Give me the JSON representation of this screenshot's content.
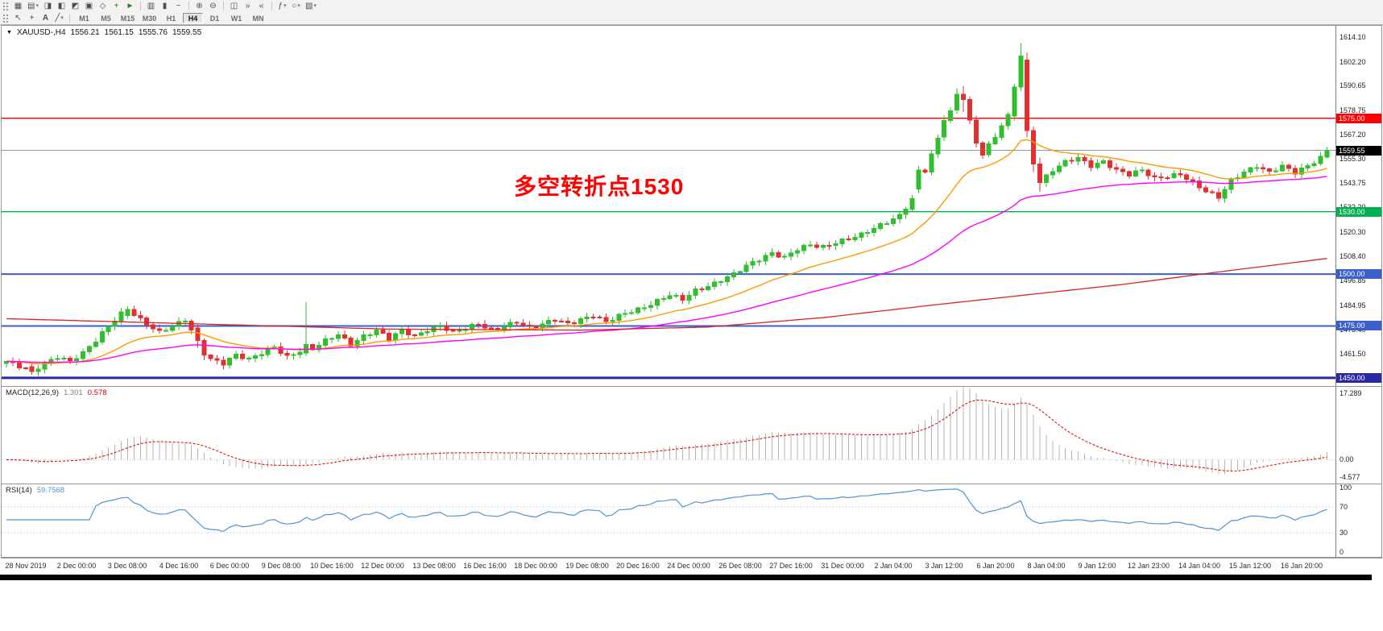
{
  "colors": {
    "up": "#2fbf2f",
    "down": "#e23030",
    "ma_fast": "#ff9900",
    "ma_slow": "#ff00ff",
    "ma_long": "#dd2222",
    "macd_hist": "#b4b4b4",
    "macd_signal": "#d40000",
    "macd_value": "#7f7f7f",
    "macd_signal_value": "#cc0000",
    "rsi_line": "#4f94d4",
    "rsi_level": "#8fbcdf",
    "rsi_value": "#4f94d4",
    "annotation": "#ff0000",
    "level_red": "#ff0000",
    "level_green": "#00b050",
    "level_blue": "#3a5fcd",
    "level_darkblue": "#2929a3",
    "current_price_line": "#8899aa",
    "current_price_tag": "#000000"
  },
  "toolbar": {
    "row1": [
      {
        "type": "grip"
      },
      {
        "name": "new-chart",
        "glyph": "▦"
      },
      {
        "name": "profiles",
        "glyph": "▤",
        "dropdown": true
      },
      {
        "name": "market-watch",
        "glyph": "◨"
      },
      {
        "name": "data-window",
        "glyph": "◧"
      },
      {
        "name": "navigator",
        "glyph": "◩"
      },
      {
        "name": "terminal",
        "glyph": "▣"
      },
      {
        "name": "strategy-tester",
        "glyph": "◇"
      },
      {
        "name": "new-order",
        "glyph": "+",
        "color": "#1a7a1a"
      },
      {
        "name": "autotrading",
        "glyph": "►",
        "color": "#2e7d32"
      },
      {
        "type": "sep"
      },
      {
        "name": "bar-chart",
        "glyph": "▥"
      },
      {
        "name": "candlestick-chart",
        "glyph": "▮"
      },
      {
        "name": "line-chart",
        "glyph": "~"
      },
      {
        "type": "sep"
      },
      {
        "name": "zoom-in",
        "glyph": "⊕"
      },
      {
        "name": "zoom-out",
        "glyph": "⊖"
      },
      {
        "type": "sep"
      },
      {
        "name": "tile-windows",
        "glyph": "◫"
      },
      {
        "name": "auto-scroll",
        "glyph": "»"
      },
      {
        "name": "chart-shift",
        "glyph": "«"
      },
      {
        "type": "sep"
      },
      {
        "name": "indicators",
        "glyph": "ƒ",
        "dropdown": true
      },
      {
        "name": "periods",
        "glyph": "○",
        "dropdown": true
      },
      {
        "name": "templates",
        "glyph": "▧",
        "dropdown": true
      }
    ],
    "row2": [
      {
        "type": "grip"
      },
      {
        "name": "cursor",
        "glyph": "↖"
      },
      {
        "name": "crosshair",
        "glyph": "+"
      },
      {
        "name": "text-label",
        "glyph": "A"
      },
      {
        "name": "draw-tools",
        "glyph": "╱",
        "dropdown": true
      },
      {
        "type": "sep"
      }
    ],
    "timeframes": [
      "M1",
      "M5",
      "M15",
      "M30",
      "H1",
      "H4",
      "D1",
      "W1",
      "MN"
    ],
    "active_timeframe": "H4"
  },
  "chart": {
    "symbol_label": "XAUUSD-,H4",
    "ohlc": {
      "open": "1556.21",
      "high": "1561.15",
      "low": "1555.76",
      "close": "1559.55"
    },
    "annotation_text": "多空转折点1530"
  },
  "chart_data": {
    "type": "candlestick",
    "symbol": "XAUUSD",
    "timeframe": "H4",
    "bar_count": 208,
    "ylim": [
      1446.1,
      1619.5
    ],
    "price_ticks": [
      1614.1,
      1602.2,
      1590.65,
      1578.75,
      1567.2,
      1555.3,
      1543.75,
      1532.2,
      1520.3,
      1508.4,
      1496.85,
      1484.95,
      1473.4,
      1461.5
    ],
    "hlines": [
      {
        "price": 1575.0,
        "label": "1575.00",
        "color_key": "level_red",
        "width": 1.3
      },
      {
        "price": 1530.0,
        "label": "1530.00",
        "color_key": "level_green",
        "width": 1.3
      },
      {
        "price": 1500.0,
        "label": "1500.00",
        "color_key": "level_blue",
        "width": 2
      },
      {
        "price": 1475.0,
        "label": "1475.00",
        "color_key": "level_blue",
        "width": 2
      },
      {
        "price": 1450.0,
        "label": "1450.00",
        "color_key": "level_darkblue",
        "width": 3
      }
    ],
    "current_price": {
      "value": 1559.55,
      "label": "1559.55"
    },
    "close_anchors": [
      [
        0,
        1458
      ],
      [
        2,
        1455.5
      ],
      [
        4,
        1453
      ],
      [
        6,
        1457
      ],
      [
        8,
        1460
      ],
      [
        10,
        1458
      ],
      [
        12,
        1462
      ],
      [
        14,
        1468
      ],
      [
        16,
        1475
      ],
      [
        18,
        1481
      ],
      [
        19,
        1483
      ],
      [
        21,
        1478
      ],
      [
        24,
        1472
      ],
      [
        26,
        1475
      ],
      [
        28,
        1478
      ],
      [
        30,
        1468
      ],
      [
        32,
        1459
      ],
      [
        34,
        1457
      ],
      [
        36,
        1461
      ],
      [
        38,
        1459
      ],
      [
        40,
        1462
      ],
      [
        42,
        1465
      ],
      [
        44,
        1460
      ],
      [
        46,
        1463
      ],
      [
        48,
        1464
      ],
      [
        50,
        1468
      ],
      [
        52,
        1471
      ],
      [
        54,
        1466
      ],
      [
        56,
        1470
      ],
      [
        58,
        1473
      ],
      [
        60,
        1469
      ],
      [
        62,
        1473
      ],
      [
        64,
        1470
      ],
      [
        66,
        1473
      ],
      [
        68,
        1475
      ],
      [
        70,
        1472
      ],
      [
        72,
        1474
      ],
      [
        74,
        1476
      ],
      [
        76,
        1473
      ],
      [
        78,
        1475
      ],
      [
        80,
        1477
      ],
      [
        82,
        1474
      ],
      [
        84,
        1476
      ],
      [
        86,
        1478
      ],
      [
        88,
        1476
      ],
      [
        90,
        1478
      ],
      [
        92,
        1480
      ],
      [
        94,
        1477
      ],
      [
        96,
        1480
      ],
      [
        98,
        1482
      ],
      [
        100,
        1484
      ],
      [
        102,
        1487
      ],
      [
        104,
        1490
      ],
      [
        106,
        1488
      ],
      [
        108,
        1492
      ],
      [
        110,
        1494
      ],
      [
        112,
        1497
      ],
      [
        114,
        1500
      ],
      [
        116,
        1504
      ],
      [
        118,
        1507
      ],
      [
        120,
        1510
      ],
      [
        122,
        1508
      ],
      [
        124,
        1512
      ],
      [
        126,
        1514
      ],
      [
        128,
        1513
      ],
      [
        130,
        1515
      ],
      [
        132,
        1517
      ],
      [
        134,
        1519
      ],
      [
        136,
        1522
      ],
      [
        138,
        1525
      ],
      [
        140,
        1528
      ],
      [
        142,
        1536
      ],
      [
        144,
        1550
      ],
      [
        146,
        1565
      ],
      [
        148,
        1578
      ],
      [
        150,
        1584
      ],
      [
        152,
        1563
      ],
      [
        153,
        1558
      ],
      [
        155,
        1566
      ],
      [
        156,
        1572
      ],
      [
        157,
        1576
      ],
      [
        158,
        1590
      ],
      [
        159,
        1605
      ],
      [
        160,
        1569
      ],
      [
        161,
        1553
      ],
      [
        162,
        1544
      ],
      [
        164,
        1550
      ],
      [
        166,
        1554
      ],
      [
        168,
        1556
      ],
      [
        170,
        1552
      ],
      [
        172,
        1554
      ],
      [
        174,
        1550
      ],
      [
        176,
        1548
      ],
      [
        178,
        1550
      ],
      [
        180,
        1546
      ],
      [
        182,
        1547
      ],
      [
        184,
        1548
      ],
      [
        186,
        1544
      ],
      [
        188,
        1540
      ],
      [
        190,
        1537
      ],
      [
        192,
        1545
      ],
      [
        194,
        1549
      ],
      [
        196,
        1552
      ],
      [
        198,
        1549
      ],
      [
        200,
        1552
      ],
      [
        202,
        1549
      ],
      [
        204,
        1552
      ],
      [
        206,
        1556
      ],
      [
        207,
        1559.55
      ]
    ],
    "special_bars": {
      "4": [
        1455.5,
        1457,
        1451.5,
        1453
      ],
      "19": [
        1480,
        1484.6,
        1478.5,
        1483
      ],
      "30": [
        1474,
        1475.5,
        1464.5,
        1468
      ],
      "31": [
        1468,
        1469,
        1458.5,
        1461
      ],
      "47": [
        1462,
        1486.5,
        1460.5,
        1466
      ],
      "143": [
        1541,
        1552,
        1539,
        1550
      ],
      "147": [
        1566,
        1576.5,
        1564,
        1574
      ],
      "149": [
        1579,
        1589.5,
        1577,
        1586.5
      ],
      "150": [
        1586.5,
        1590.5,
        1578,
        1584
      ],
      "158": [
        1576,
        1591.5,
        1574,
        1590
      ],
      "159": [
        1590,
        1611.2,
        1588,
        1605
      ],
      "160": [
        1603,
        1606.5,
        1566,
        1569
      ],
      "161": [
        1569,
        1571,
        1549,
        1553
      ],
      "162": [
        1553,
        1556,
        1539.5,
        1544
      ],
      "207": [
        1556.21,
        1561.15,
        1555.76,
        1559.55
      ]
    },
    "moving_averages": [
      {
        "name": "ma-fast",
        "type": "ema",
        "period": 21,
        "color_key": "ma_fast",
        "width": 1.4
      },
      {
        "name": "ma-slow",
        "type": "ema",
        "period": 56,
        "color_key": "ma_slow",
        "width": 1.4
      },
      {
        "name": "ma-long",
        "type": "anchors",
        "color_key": "ma_long",
        "width": 1.3,
        "anchors": [
          [
            0,
            1478.5
          ],
          [
            30,
            1476
          ],
          [
            60,
            1473.5
          ],
          [
            90,
            1473
          ],
          [
            110,
            1474.5
          ],
          [
            128,
            1479
          ],
          [
            145,
            1485
          ],
          [
            160,
            1490
          ],
          [
            175,
            1495
          ],
          [
            190,
            1501
          ],
          [
            207,
            1507.5
          ]
        ]
      }
    ],
    "time_labels": [
      "28 Nov 2019",
      "2 Dec 00:00",
      "3 Dec 08:00",
      "4 Dec 16:00",
      "6 Dec 00:00",
      "9 Dec 08:00",
      "10 Dec 16:00",
      "12 Dec 00:00",
      "13 Dec 08:00",
      "16 Dec 16:00",
      "18 Dec 00:00",
      "19 Dec 08:00",
      "20 Dec 16:00",
      "24 Dec 00:00",
      "26 Dec 08:00",
      "27 Dec 16:00",
      "31 Dec 00:00",
      "2 Jan 04:00",
      "3 Jan 12:00",
      "6 Jan 20:00",
      "8 Jan 04:00",
      "9 Jan 12:00",
      "12 Jan 23:00",
      "14 Jan 04:00",
      "15 Jan 12:00",
      "16 Jan 20:00"
    ]
  },
  "macd_panel": {
    "label": "MACD(12,26,9)",
    "value_main": "1.301",
    "value_signal": "0.578",
    "ticks": [
      {
        "v": 17.289,
        "label": "17.289"
      },
      {
        "v": 0,
        "label": "0.00"
      },
      {
        "v": -4.577,
        "label": "-4.577"
      }
    ],
    "ylim": [
      -5.97,
      18.93
    ]
  },
  "rsi_panel": {
    "label": "RSI(14)",
    "value": "59.7568",
    "ticks": [
      {
        "v": 100,
        "label": "100"
      },
      {
        "v": 70,
        "label": "70"
      },
      {
        "v": 30,
        "label": "30"
      },
      {
        "v": 0,
        "label": "0"
      }
    ],
    "levels": [
      70,
      30
    ],
    "ylim": [
      0,
      100
    ]
  }
}
